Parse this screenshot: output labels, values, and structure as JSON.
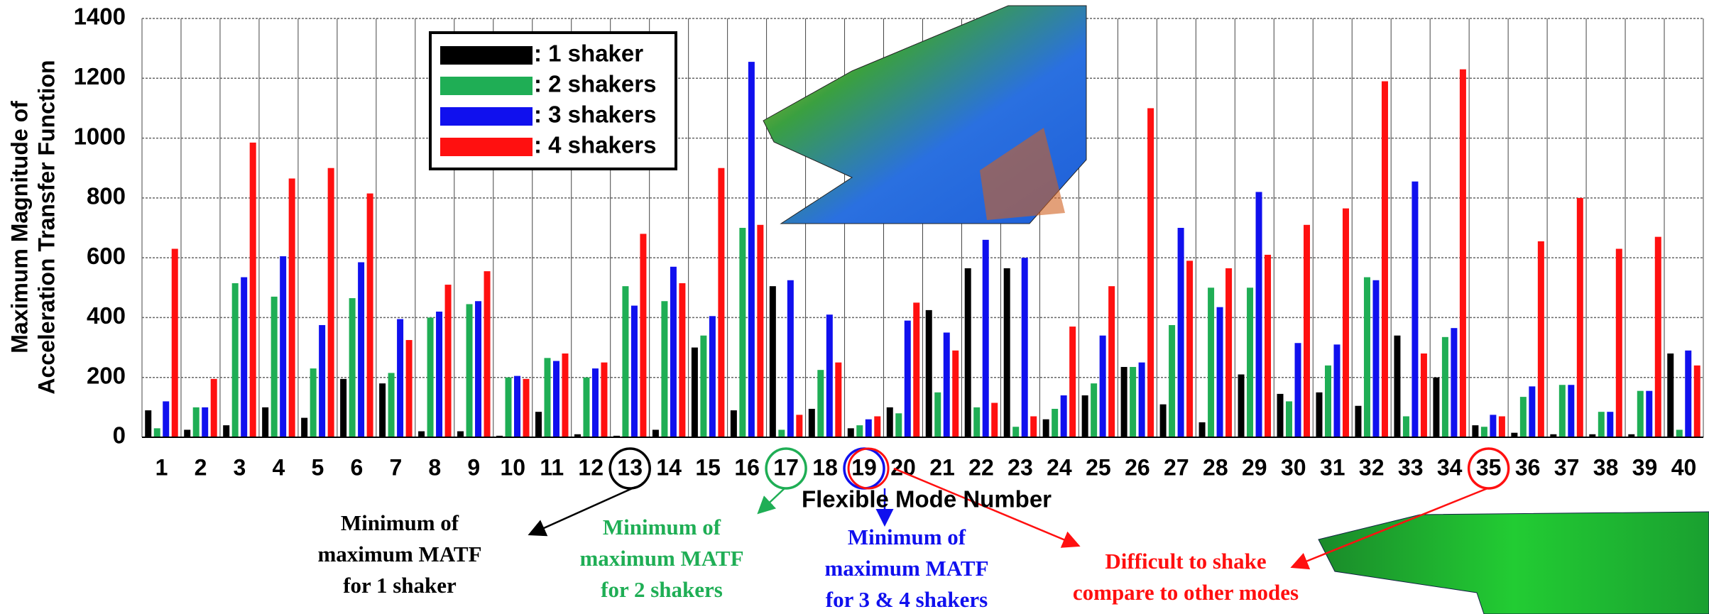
{
  "chart_data": {
    "type": "bar",
    "x_label": "Flexible Mode Number",
    "y_label": [
      "Maximum Magnitude of",
      "Acceleration Transfer Function"
    ],
    "categories": [
      "1",
      "2",
      "3",
      "4",
      "5",
      "6",
      "7",
      "8",
      "9",
      "10",
      "11",
      "12",
      "13",
      "14",
      "15",
      "16",
      "17",
      "18",
      "19",
      "20",
      "21",
      "22",
      "23",
      "24",
      "25",
      "26",
      "27",
      "28",
      "29",
      "30",
      "31",
      "32",
      "33",
      "34",
      "35",
      "36",
      "37",
      "38",
      "39",
      "40"
    ],
    "series": [
      {
        "name": ": 1 shaker",
        "color": "#000000",
        "values": [
          90,
          25,
          40,
          100,
          65,
          195,
          180,
          20,
          20,
          5,
          85,
          10,
          5,
          25,
          300,
          90,
          505,
          95,
          30,
          100,
          425,
          565,
          565,
          60,
          140,
          235,
          110,
          50,
          210,
          145,
          150,
          105,
          340,
          200,
          40,
          15,
          10,
          10,
          10,
          280
        ]
      },
      {
        "name": ": 2 shakers",
        "color": "#1fae55",
        "values": [
          30,
          100,
          515,
          470,
          230,
          465,
          215,
          400,
          445,
          200,
          265,
          200,
          505,
          455,
          340,
          700,
          25,
          225,
          40,
          80,
          150,
          100,
          35,
          95,
          180,
          235,
          375,
          500,
          500,
          120,
          240,
          535,
          70,
          335,
          35,
          135,
          175,
          85,
          155,
          25
        ]
      },
      {
        "name": ": 3 shakers",
        "color": "#1010ee",
        "values": [
          120,
          100,
          535,
          605,
          375,
          585,
          395,
          420,
          455,
          205,
          255,
          230,
          440,
          570,
          405,
          1255,
          525,
          410,
          60,
          390,
          350,
          660,
          600,
          140,
          340,
          250,
          700,
          435,
          820,
          315,
          310,
          525,
          855,
          365,
          75,
          170,
          175,
          85,
          155,
          290
        ]
      },
      {
        "name": ": 4 shakers",
        "color": "#ff1010",
        "values": [
          630,
          195,
          985,
          865,
          900,
          815,
          325,
          510,
          555,
          195,
          280,
          250,
          680,
          515,
          900,
          710,
          75,
          250,
          70,
          450,
          290,
          115,
          70,
          370,
          505,
          1100,
          590,
          565,
          610,
          710,
          765,
          1190,
          280,
          1230,
          70,
          655,
          800,
          630,
          670,
          240
        ]
      }
    ],
    "ylim": [
      0,
      1400
    ],
    "yticks": [
      0,
      200,
      400,
      600,
      800,
      1000,
      1200,
      1400
    ],
    "grid": true,
    "annotations": [
      {
        "lines": [
          "Minimum of",
          "maximum MATF",
          "for 1 shaker"
        ],
        "color": "#000000"
      },
      {
        "lines": [
          "Minimum of",
          "maximum MATF",
          "for 2 shakers"
        ],
        "color": "#1fae55"
      },
      {
        "lines": [
          "Minimum of",
          "maximum MATF",
          "for 3 & 4 shakers"
        ],
        "color": "#1010ee"
      },
      {
        "lines": [
          "Difficult to shake",
          "compare to other modes"
        ],
        "color": "#ff1010"
      }
    ]
  }
}
